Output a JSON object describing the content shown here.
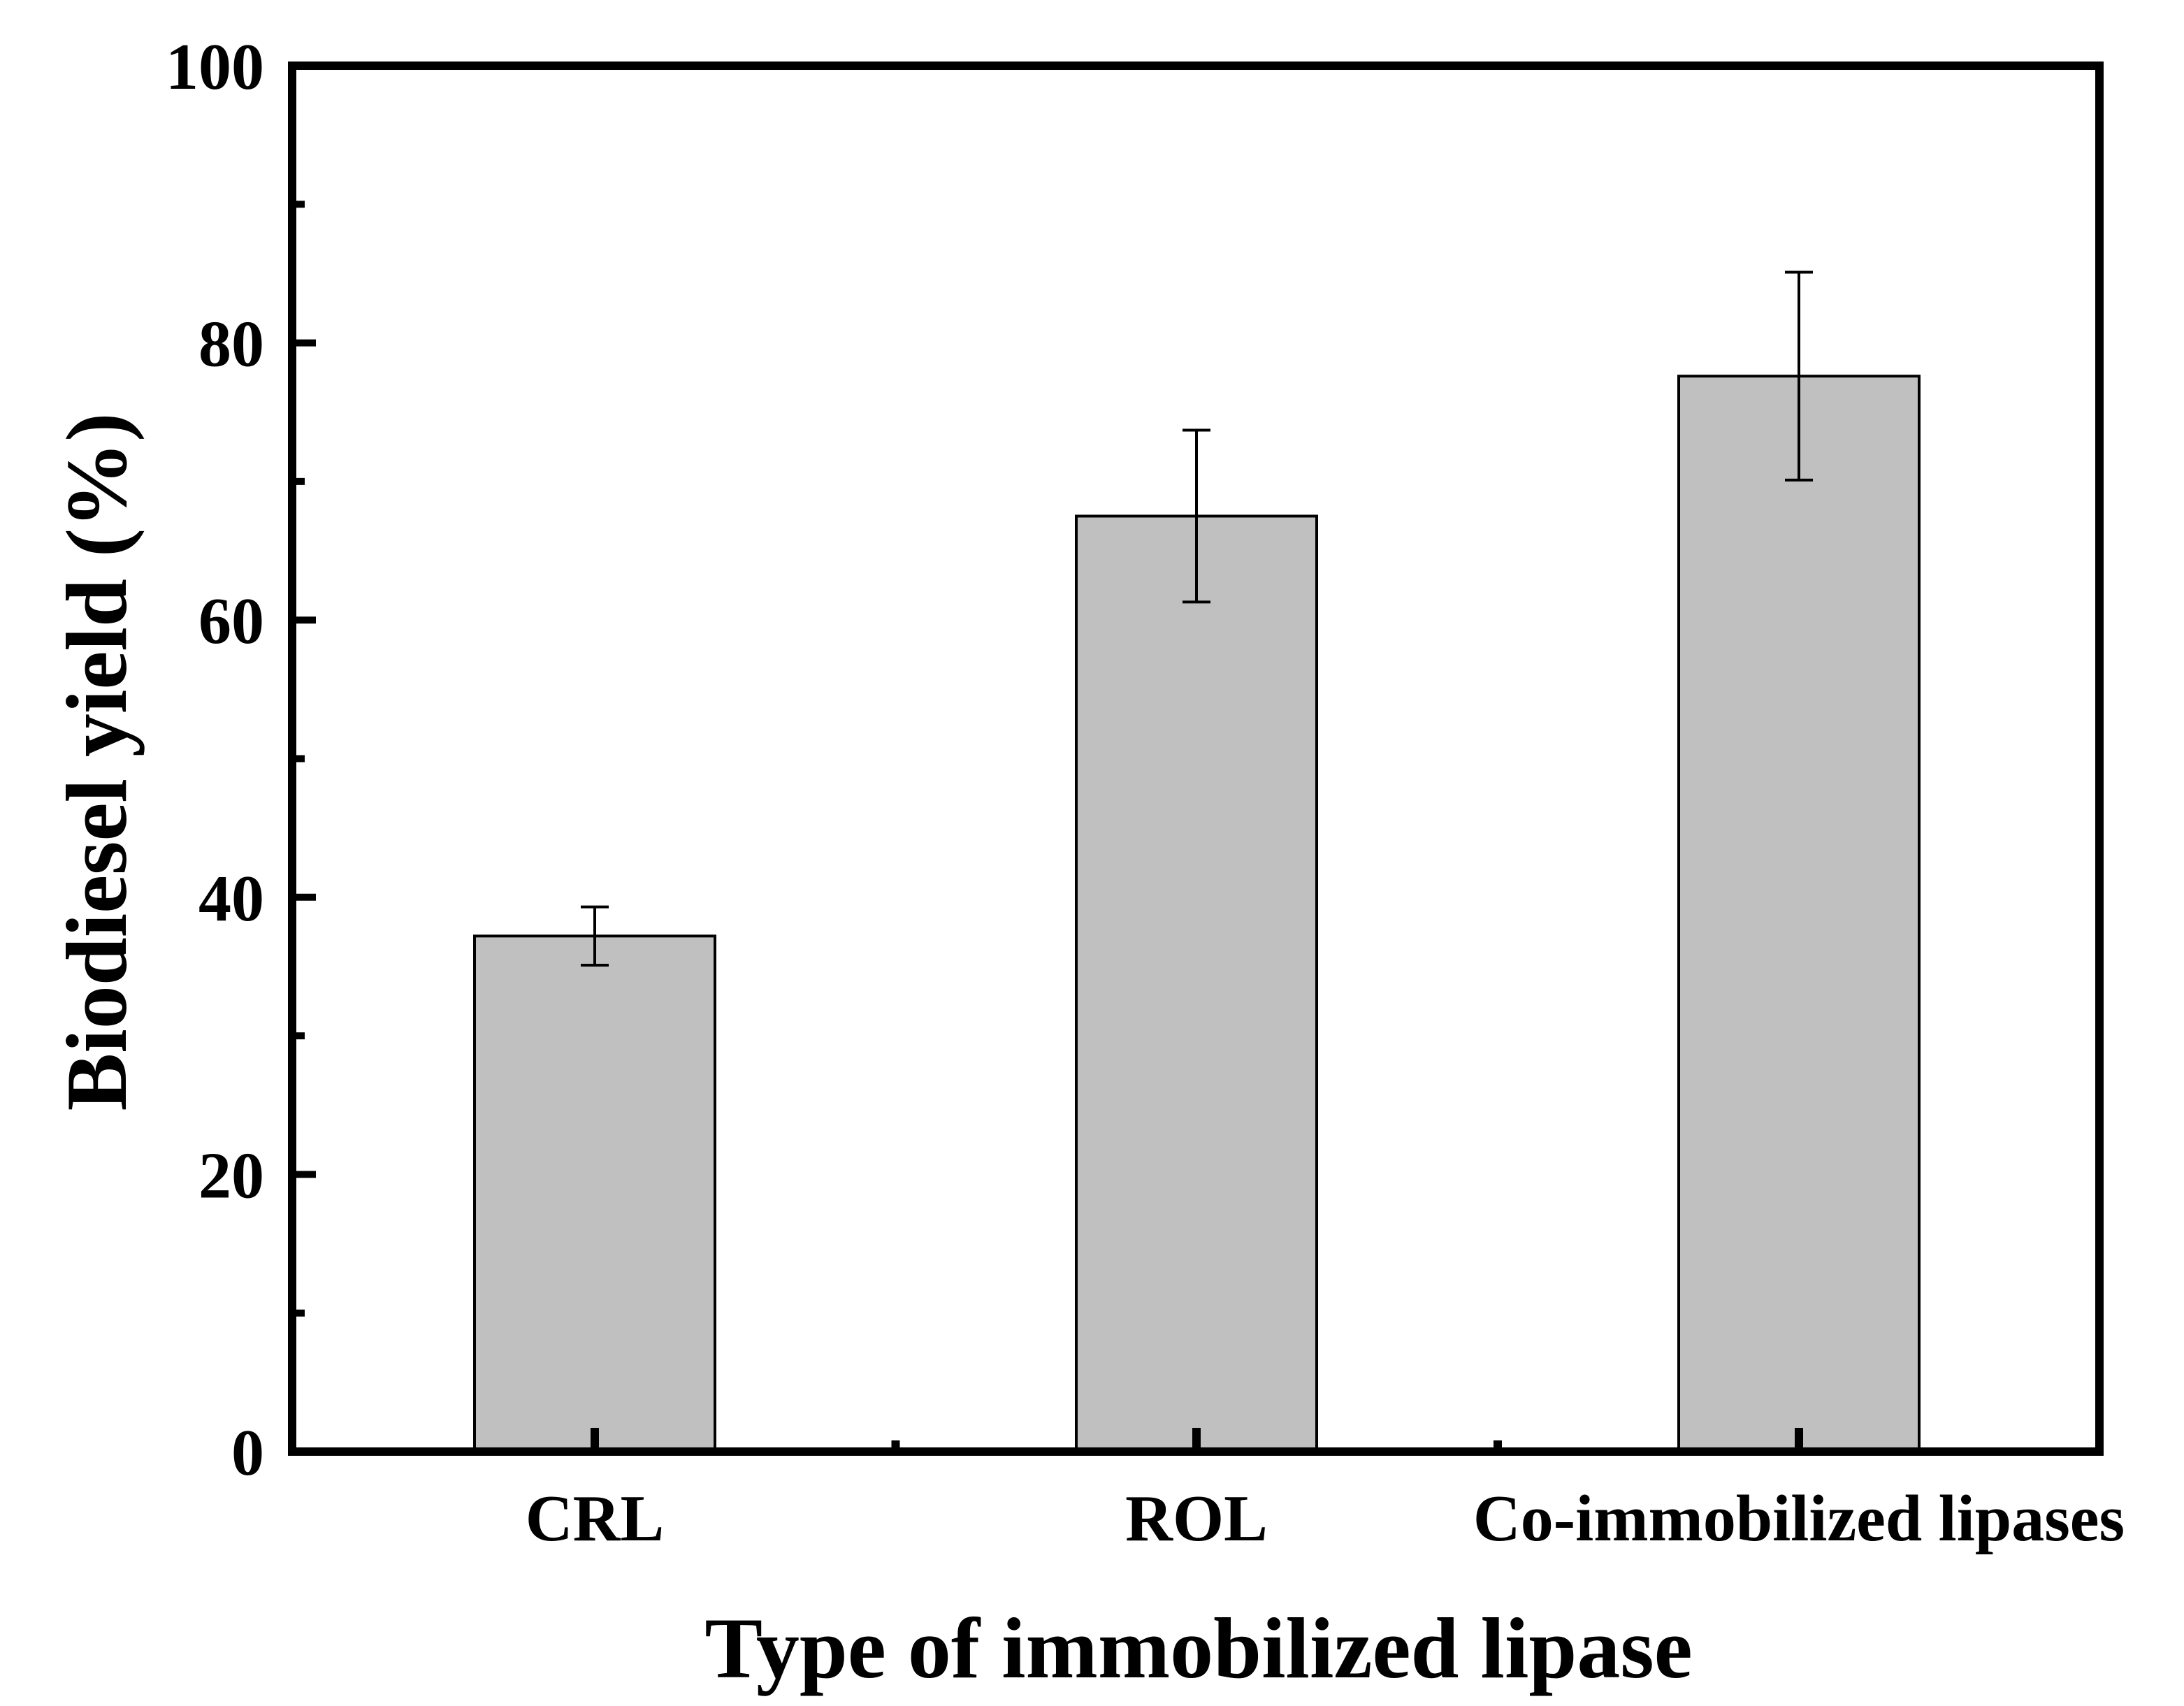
{
  "chart_data": {
    "type": "bar",
    "title": "",
    "xlabel": "Type of immobilized lipase",
    "ylabel": "Biodiesel yield (%)",
    "categories": [
      "CRL",
      "ROL",
      "Co-immobilized lipases"
    ],
    "values": [
      37.2,
      67.5,
      77.6
    ],
    "errors": [
      2.1,
      6.2,
      7.5
    ],
    "ylim": [
      0,
      100
    ],
    "yticks": [
      0,
      20,
      40,
      60,
      80,
      100
    ],
    "ytick_labels": [
      "0",
      "20",
      "40",
      "60",
      "80",
      "100"
    ],
    "y_minor_step": 10,
    "grid": false,
    "legend": "none",
    "bar_color": "#c0c0c0",
    "edge_color": "#000000"
  }
}
